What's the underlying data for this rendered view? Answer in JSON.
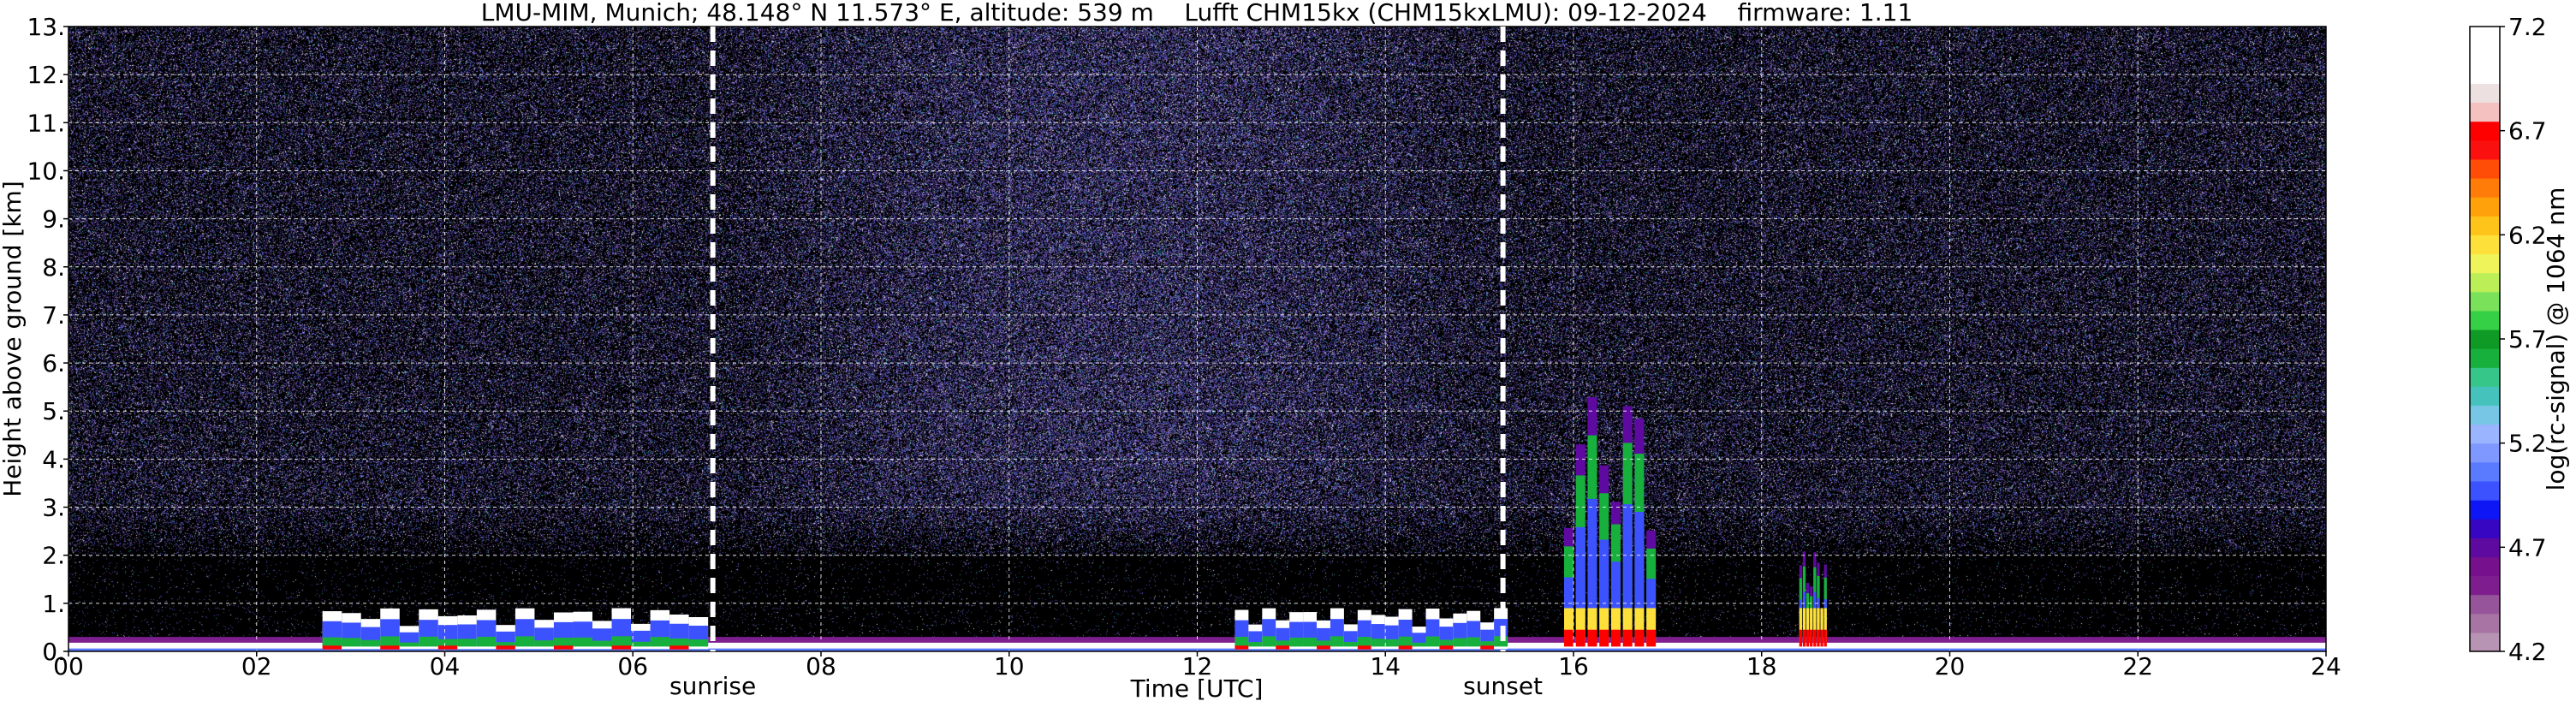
{
  "title": "LMU-MIM, Munich; 48.148° N 11.573° E, altitude: 539 m    Lufft CHM15kx (CHM15kxLMU): 09-12-2024    firmware: 1.11",
  "chart_data": {
    "type": "heatmap",
    "title": "LMU-MIM, Munich; 48.148° N 11.573° E, altitude: 539 m    Lufft CHM15kx (CHM15kxLMU): 09-12-2024    firmware: 1.11",
    "xlabel": "Time [UTC]",
    "ylabel": "Height above ground [km]",
    "xlim": [
      0,
      24
    ],
    "ylim": [
      0,
      13
    ],
    "x_ticks": [
      0,
      2,
      4,
      6,
      8,
      10,
      12,
      14,
      16,
      18,
      20,
      22,
      24
    ],
    "x_tick_labels": [
      "00",
      "02",
      "04",
      "06",
      "08",
      "10",
      "12",
      "14",
      "16",
      "18",
      "20",
      "22",
      "24"
    ],
    "y_ticks": [
      0,
      1,
      2,
      3,
      4,
      5,
      6,
      7,
      8,
      9,
      10,
      11,
      12,
      13
    ],
    "y_tick_labels": [
      "0.",
      "1.",
      "2.",
      "3.",
      "4.",
      "5.",
      "6.",
      "7.",
      "8.",
      "9.",
      "10.",
      "11.",
      "12.",
      "13."
    ],
    "grid": true,
    "background": "#000000",
    "annotations": [
      {
        "x": 6.85,
        "label": "sunrise"
      },
      {
        "x": 15.25,
        "label": "sunset"
      }
    ],
    "colorbar": {
      "label": "log(rc-signal) @ 1064 nm",
      "min": 4.2,
      "max": 7.2,
      "ticks": [
        4.2,
        4.7,
        5.2,
        5.7,
        6.2,
        6.7,
        7.2
      ],
      "tick_labels": [
        "4.2",
        "4.7",
        "5.2",
        "5.7",
        "6.2",
        "6.7",
        "7.2"
      ],
      "colors": [
        "#b894b4",
        "#a774a4",
        "#96549a",
        "#7e1e8e",
        "#76108c",
        "#5e0aa0",
        "#3606c2",
        "#0e16f6",
        "#3c52ff",
        "#5a7aff",
        "#7e98ff",
        "#9ab4ff",
        "#78c6e6",
        "#46c2bc",
        "#36c68a",
        "#17b03c",
        "#0e9a24",
        "#36d046",
        "#7ae25a",
        "#bcee58",
        "#eef45a",
        "#fee03a",
        "#ffc41a",
        "#ffa10a",
        "#ff7c08",
        "#ff4c06",
        "#fb1010",
        "#ff0000",
        "#f4c0c0",
        "#ece0e0",
        "#ffffff",
        "#ffffff",
        "#ffffff"
      ]
    },
    "features": [
      {
        "name": "surface aerosol layer",
        "x": [
          0,
          24
        ],
        "top_km": 0.3
      },
      {
        "name": "boundary layer aerosol",
        "x": [
          2.7,
          6.8
        ],
        "top_km": 0.9
      },
      {
        "name": "boundary layer aerosol",
        "x": [
          12.4,
          15.3
        ],
        "top_km": 0.9
      },
      {
        "name": "cloud columns",
        "x": [
          15.9,
          16.9
        ],
        "top_km": 5.3
      },
      {
        "name": "cloud",
        "x": [
          18.4,
          18.7
        ],
        "top_km": 2.1
      }
    ]
  }
}
